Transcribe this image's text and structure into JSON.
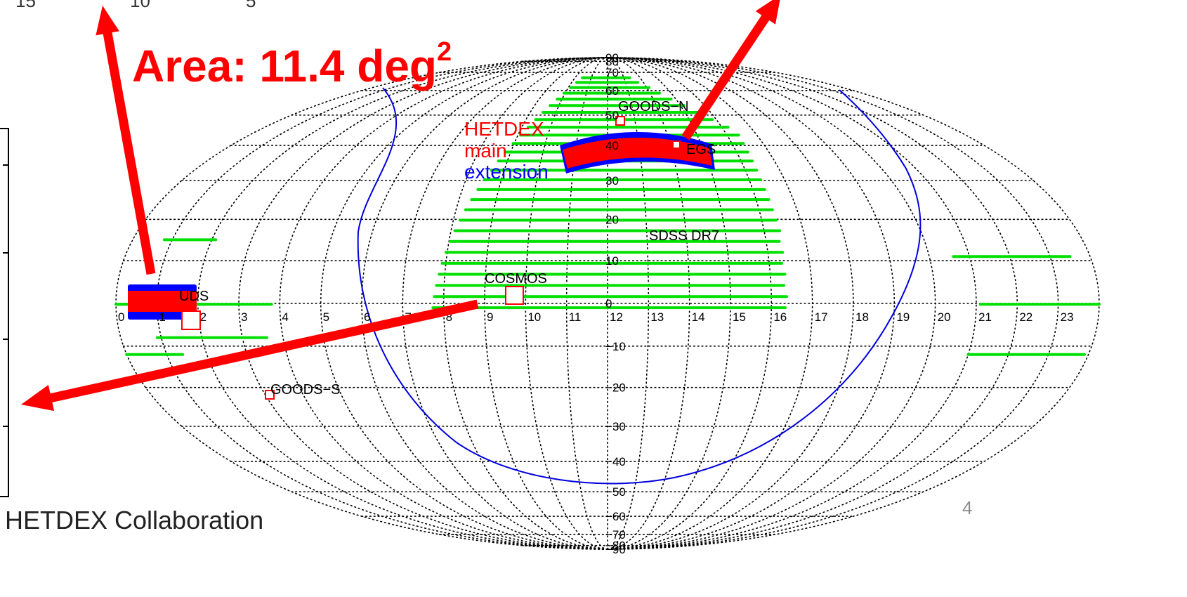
{
  "title": {
    "text": "Area: 11.4 deg",
    "superscript": "2"
  },
  "credit": "HETDEX Collaboration",
  "page_number": "4",
  "top_fragments": [
    "15",
    "10",
    "5"
  ],
  "legend": [
    {
      "text": "HETDEX",
      "color": "#ff0000"
    },
    {
      "text": "main",
      "color": "#ff0000"
    },
    {
      "text": "extension",
      "color": "#0000ff"
    }
  ],
  "field_labels": {
    "goods_n": "GOODS−N",
    "egs": "EGS",
    "sdss": "SDSS DR7",
    "cosmos": "COSMOS",
    "uds": "UDS",
    "goods_s": "GOODS−S"
  },
  "ra_ticks": [
    "0",
    "1",
    "2",
    "3",
    "4",
    "5",
    "6",
    "7",
    "8",
    "9",
    "10",
    "11",
    "12",
    "13",
    "14",
    "15",
    "16",
    "17",
    "18",
    "19",
    "20",
    "21",
    "22",
    "23"
  ],
  "dec_ticks": [
    "90",
    "80",
    "70",
    "60",
    "50",
    "40",
    "30",
    "20",
    "10",
    "0",
    "−10",
    "−20",
    "−30",
    "−40",
    "−50",
    "−60",
    "−70",
    "−80",
    "−90"
  ],
  "colors": {
    "sdss": "#00e000",
    "hetdex_main": "#ff0000",
    "hetdex_extension": "#0000ff",
    "galactic_plane": "#0000dd",
    "arrows": "#ff0000",
    "grid": "#000000"
  }
}
